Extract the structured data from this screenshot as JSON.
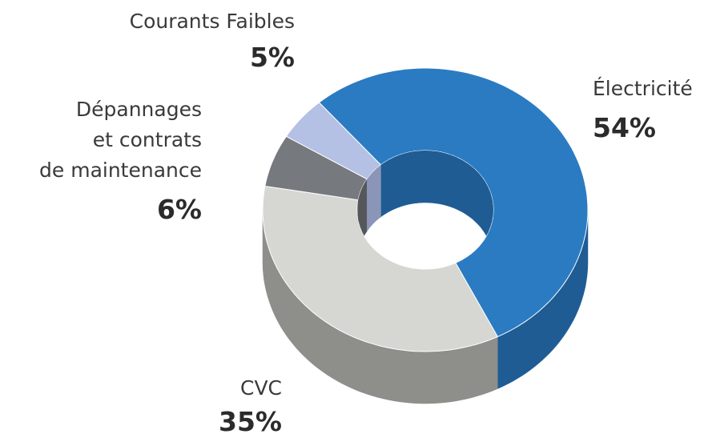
{
  "chart_data": {
    "type": "donut",
    "categories": [
      "Électricité",
      "CVC",
      "Dépannages\net contrats\nde maintenance",
      "Courants Faibles"
    ],
    "values": [
      54,
      35,
      6,
      5
    ],
    "value_labels": [
      "54%",
      "35%",
      "6%",
      "5%"
    ],
    "colors": [
      "#2a7bc2",
      "#d6d6d3",
      "#76797e",
      "#b4c0e4"
    ],
    "side_colors": [
      "#1f5c94",
      "#8e8e8b",
      "#55575b",
      "#8a95b8"
    ]
  }
}
